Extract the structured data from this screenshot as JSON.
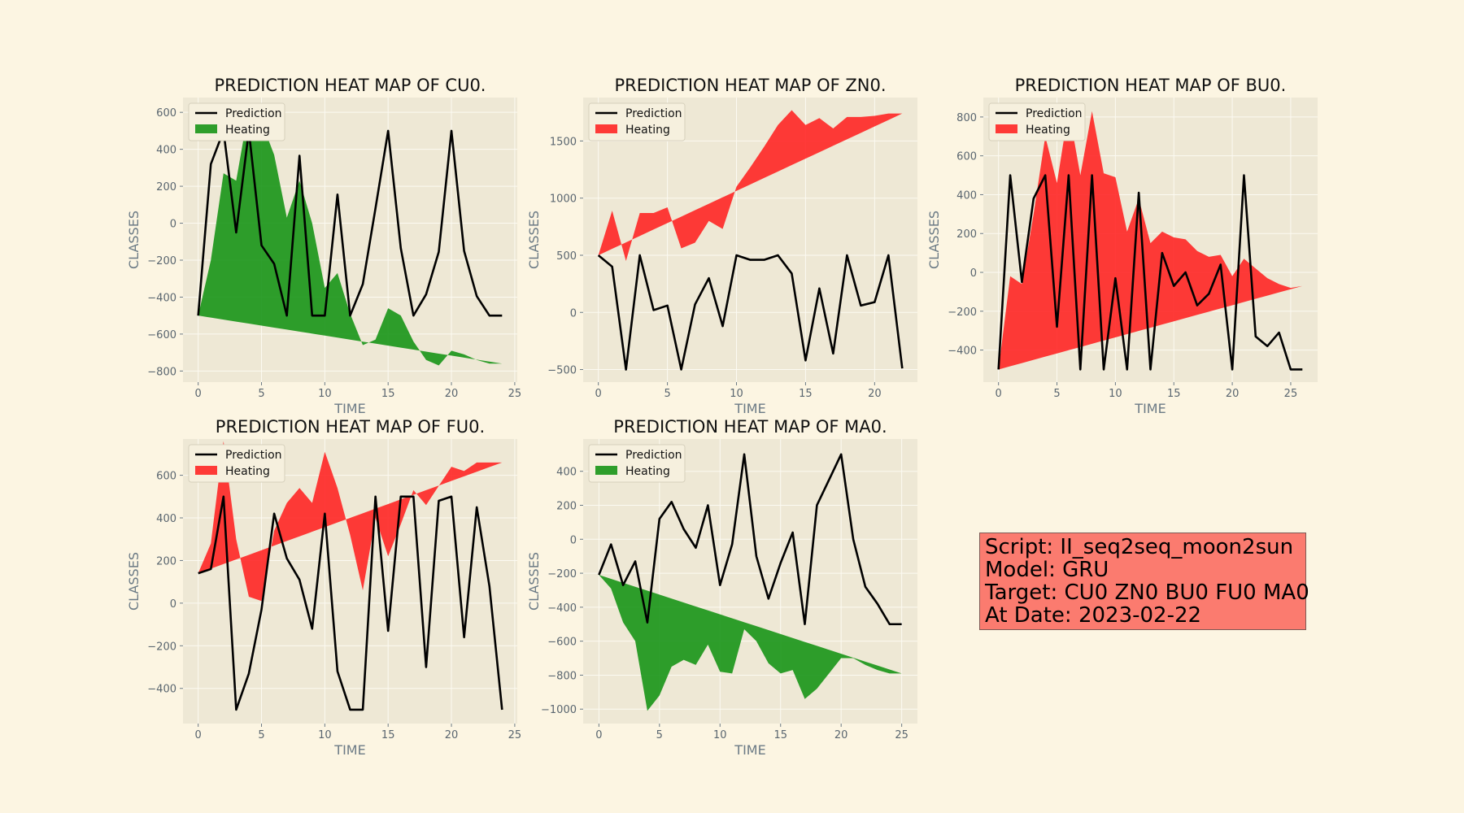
{
  "colors": {
    "background": "#fcf5e2",
    "plot_background": "#eee8d5",
    "grid": "#fcfaf2",
    "prediction_line": "#000000",
    "heating_green": "#129212",
    "heating_red": "#ff2020",
    "info_box": "#fb7b6f"
  },
  "info": {
    "script": "Script: II_seq2seq_moon2sun",
    "model": "Model: GRU",
    "target": "Target: CU0 ZN0 BU0 FU0 MA0",
    "date": "At Date: 2023-02-22"
  },
  "chart_data": [
    {
      "type": "line",
      "title": "PREDICTION HEAT MAP OF CU0.",
      "xlabel": "TIME",
      "ylabel": "CLASSES",
      "xlim": [
        -1.2,
        25.2
      ],
      "ylim": [
        -860,
        680
      ],
      "xticks": [
        0,
        5,
        10,
        15,
        20,
        25
      ],
      "yticks": [
        -800,
        -600,
        -400,
        -200,
        0,
        200,
        400,
        600
      ],
      "grid": true,
      "legend": "top-left",
      "heating_color": "green",
      "series": [
        {
          "name": "Prediction",
          "x": [
            0,
            1,
            2,
            3,
            4,
            5,
            6,
            7,
            8,
            9,
            10,
            11,
            12,
            13,
            14,
            15,
            16,
            17,
            18,
            19,
            20,
            21,
            22,
            23,
            24
          ],
          "values": [
            -500,
            320,
            500,
            -50,
            500,
            -120,
            -220,
            -500,
            365,
            -500,
            -500,
            155,
            -500,
            -330,
            80,
            500,
            -135,
            -500,
            -385,
            -155,
            500,
            -150,
            -395,
            -500,
            -500
          ]
        },
        {
          "name": "Heating",
          "x": [
            0,
            1,
            2,
            3,
            4,
            5,
            6,
            7,
            8,
            9,
            10,
            11,
            12,
            13,
            14,
            15,
            16,
            17,
            18,
            19,
            20,
            21,
            22,
            23,
            24
          ],
          "upper": [
            -500,
            -200,
            270,
            230,
            620,
            550,
            370,
            30,
            230,
            0,
            -350,
            -270,
            -490,
            -660,
            -630,
            -460,
            -500,
            -640,
            -740,
            -770,
            -690,
            -710,
            -740,
            -760,
            -760
          ],
          "lower_start": -500,
          "lower_end": -760
        }
      ]
    },
    {
      "type": "line",
      "title": "PREDICTION HEAT MAP OF ZN0.",
      "xlabel": "TIME",
      "ylabel": "CLASSES",
      "xlim": [
        -1.1,
        23.1
      ],
      "ylim": [
        -610,
        1880
      ],
      "xticks": [
        0,
        5,
        10,
        15,
        20
      ],
      "yticks": [
        -500,
        0,
        500,
        1000,
        1500
      ],
      "grid": true,
      "legend": "top-left",
      "heating_color": "red",
      "series": [
        {
          "name": "Prediction",
          "x": [
            0,
            1,
            2,
            3,
            4,
            5,
            6,
            7,
            8,
            9,
            10,
            11,
            12,
            13,
            14,
            15,
            16,
            17,
            18,
            19,
            20,
            21,
            22
          ],
          "values": [
            500,
            400,
            -500,
            500,
            20,
            60,
            -500,
            70,
            300,
            -120,
            500,
            460,
            460,
            500,
            340,
            -420,
            210,
            -360,
            500,
            60,
            90,
            500,
            -490
          ]
        },
        {
          "name": "Heating",
          "x": [
            0,
            1,
            2,
            3,
            4,
            5,
            6,
            7,
            8,
            9,
            10,
            11,
            12,
            13,
            14,
            15,
            16,
            17,
            18,
            19,
            20,
            21,
            22
          ],
          "upper": [
            500,
            890,
            450,
            870,
            870,
            920,
            560,
            610,
            800,
            730,
            1100,
            1270,
            1450,
            1640,
            1770,
            1640,
            1700,
            1610,
            1710,
            1710,
            1720,
            1740,
            1740
          ],
          "lower_start": 500,
          "lower_end": 1740
        }
      ]
    },
    {
      "type": "line",
      "title": "PREDICTION HEAT MAP OF BU0.",
      "xlabel": "TIME",
      "ylabel": "CLASSES",
      "xlim": [
        -1.3,
        27.3
      ],
      "ylim": [
        -565,
        900
      ],
      "xticks": [
        0,
        5,
        10,
        15,
        20,
        25
      ],
      "yticks": [
        -400,
        -200,
        0,
        200,
        400,
        600,
        800
      ],
      "grid": true,
      "legend": "top-left",
      "heating_color": "red",
      "series": [
        {
          "name": "Prediction",
          "x": [
            0,
            1,
            2,
            3,
            4,
            5,
            6,
            7,
            8,
            9,
            10,
            11,
            12,
            13,
            14,
            15,
            16,
            17,
            18,
            19,
            20,
            21,
            22,
            23,
            24,
            25,
            26
          ],
          "values": [
            -500,
            500,
            -50,
            380,
            500,
            -280,
            500,
            -500,
            500,
            -500,
            -30,
            -500,
            410,
            -500,
            100,
            -70,
            0,
            -170,
            -110,
            40,
            -500,
            500,
            -330,
            -380,
            -310,
            -500,
            -500
          ]
        },
        {
          "name": "Heating",
          "x": [
            0,
            1,
            2,
            3,
            4,
            5,
            6,
            7,
            8,
            9,
            10,
            11,
            12,
            13,
            14,
            15,
            16,
            17,
            18,
            19,
            20,
            21,
            22,
            23,
            24,
            25,
            26
          ],
          "upper": [
            -500,
            -20,
            -60,
            300,
            700,
            460,
            840,
            500,
            830,
            510,
            490,
            210,
            380,
            150,
            210,
            180,
            170,
            110,
            80,
            90,
            -20,
            70,
            20,
            -30,
            -60,
            -80,
            -70
          ],
          "lower_start": -500,
          "lower_end": -70
        }
      ]
    },
    {
      "type": "line",
      "title": "PREDICTION HEAT MAP OF FU0.",
      "xlabel": "TIME",
      "ylabel": "CLASSES",
      "xlim": [
        -1.2,
        25.2
      ],
      "ylim": [
        -565,
        770
      ],
      "xticks": [
        0,
        5,
        10,
        15,
        20,
        25
      ],
      "yticks": [
        -400,
        -200,
        0,
        200,
        400,
        600
      ],
      "grid": true,
      "legend": "top-left",
      "heating_color": "red",
      "series": [
        {
          "name": "Prediction",
          "x": [
            0,
            1,
            2,
            3,
            4,
            5,
            6,
            7,
            8,
            9,
            10,
            11,
            12,
            13,
            14,
            15,
            16,
            17,
            18,
            19,
            20,
            21,
            22,
            23,
            24
          ],
          "values": [
            140,
            160,
            500,
            -500,
            -330,
            -30,
            420,
            210,
            110,
            -120,
            420,
            -320,
            -500,
            -500,
            500,
            -130,
            500,
            500,
            -300,
            480,
            500,
            -160,
            450,
            80,
            -500
          ]
        },
        {
          "name": "Heating",
          "x": [
            0,
            1,
            2,
            3,
            4,
            5,
            6,
            7,
            8,
            9,
            10,
            11,
            12,
            13,
            14,
            15,
            16,
            17,
            18,
            19,
            20,
            21,
            22,
            23,
            24
          ],
          "upper": [
            140,
            280,
            760,
            300,
            30,
            10,
            340,
            470,
            540,
            470,
            710,
            540,
            320,
            60,
            400,
            220,
            370,
            530,
            460,
            550,
            640,
            620,
            660,
            660,
            660
          ],
          "lower_start": 140,
          "lower_end": 660
        }
      ]
    },
    {
      "type": "line",
      "title": "PREDICTION HEAT MAP OF MA0.",
      "xlabel": "TIME",
      "ylabel": "CLASSES",
      "xlim": [
        -1.3,
        26.3
      ],
      "ylim": [
        -1085,
        590
      ],
      "xticks": [
        0,
        5,
        10,
        15,
        20,
        25
      ],
      "yticks": [
        -1000,
        -800,
        -600,
        -400,
        -200,
        0,
        200,
        400
      ],
      "grid": true,
      "legend": "top-left",
      "heating_color": "green",
      "series": [
        {
          "name": "Prediction",
          "x": [
            0,
            1,
            2,
            3,
            4,
            5,
            6,
            7,
            8,
            9,
            10,
            11,
            12,
            13,
            14,
            15,
            16,
            17,
            18,
            19,
            20,
            21,
            22,
            23,
            24,
            25
          ],
          "values": [
            -210,
            -30,
            -270,
            -130,
            -490,
            120,
            220,
            60,
            -50,
            200,
            -270,
            -30,
            500,
            -100,
            -350,
            -140,
            40,
            -500,
            200,
            350,
            500,
            0,
            -280,
            -380,
            -500,
            -500
          ]
        },
        {
          "name": "Heating",
          "x": [
            0,
            1,
            2,
            3,
            4,
            5,
            6,
            7,
            8,
            9,
            10,
            11,
            12,
            13,
            14,
            15,
            16,
            17,
            18,
            19,
            20,
            21,
            22,
            23,
            24,
            25
          ],
          "upper": [
            -210,
            -290,
            -490,
            -600,
            -1010,
            -920,
            -750,
            -710,
            -740,
            -620,
            -780,
            -790,
            -530,
            -600,
            -730,
            -790,
            -770,
            -940,
            -880,
            -790,
            -700,
            -700,
            -740,
            -770,
            -790,
            -790
          ],
          "lower_start": -210,
          "lower_end": -790
        }
      ]
    }
  ]
}
